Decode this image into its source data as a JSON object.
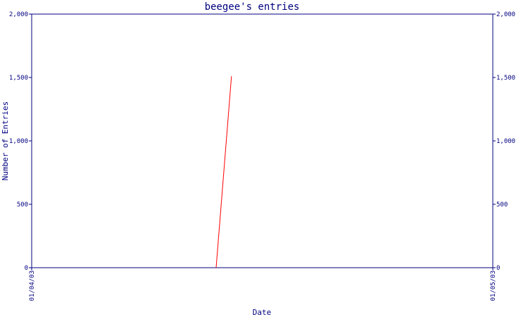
{
  "chart_data": {
    "type": "line",
    "title": "beegee's entries",
    "xlabel": "Date",
    "ylabel": "Number of Entries",
    "x_ticks": [
      "01/04/03",
      "01/05/03"
    ],
    "y_ticks": [
      "0",
      "500",
      "1,000",
      "1,500",
      "2,000"
    ],
    "y_tick_values": [
      0,
      500,
      1000,
      1500,
      2000
    ],
    "ylim": [
      0,
      2000
    ],
    "xlim": [
      "2003-04-01",
      "2003-05-01"
    ],
    "grid": false,
    "series": [
      {
        "color": "#ff0000",
        "points": [
          {
            "x": "2003-04-13",
            "y": 0
          },
          {
            "x": "2003-04-14",
            "y": 1510
          }
        ]
      }
    ],
    "axis_color": "#000080"
  }
}
